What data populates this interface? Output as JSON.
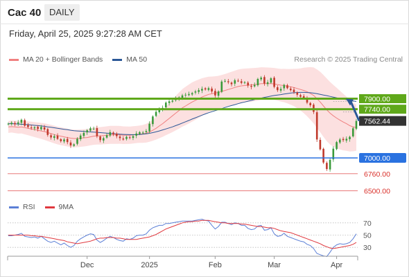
{
  "header": {
    "symbol": "Cac 40",
    "period": "DAILY",
    "datetime": "Friday, April 25, 2025 9:27:28 AM CET"
  },
  "legend_main": [
    {
      "label": "MA 20 + Bollinger Bands",
      "color": "#f08080"
    },
    {
      "label": "MA 50",
      "color": "#2b5797"
    }
  ],
  "copyright": "Research © 2025 Trading Central",
  "legend_rsi": [
    {
      "label": "RSI",
      "color": "#5b7fd6"
    },
    {
      "label": "9MA",
      "color": "#e0383e"
    }
  ],
  "x_axis_labels": [
    "Dec",
    "2025",
    "Feb",
    "Mar",
    "Apr"
  ],
  "colors": {
    "resistance": "#5fa81a",
    "support_pivot": "#2a72e0",
    "support": "#e87878",
    "last": "#333333",
    "candle_up": "#3a9a3a",
    "candle_down": "#c0392b",
    "band_fill": "#fbd5d5",
    "ma20": "#f08080",
    "ma50": "#2b5797",
    "arrow": "#2b5797"
  },
  "chart_data": [
    {
      "type": "candlestick",
      "title": "Cac 40",
      "ylim": [
        6400,
        8400
      ],
      "levels": [
        {
          "value": 7900.0,
          "label": "7900.00",
          "kind": "resistance"
        },
        {
          "value": 7740.0,
          "label": "7740.00",
          "kind": "resistance"
        },
        {
          "value": 7562.44,
          "label": "7562.44",
          "kind": "last"
        },
        {
          "value": 7000.0,
          "label": "7000.00",
          "kind": "pivot"
        },
        {
          "value": 6760.0,
          "label": "6760.00",
          "kind": "support"
        },
        {
          "value": 6500.0,
          "label": "6500.00",
          "kind": "support"
        }
      ],
      "x_tick_labels": [
        "Dec",
        "2025",
        "Feb",
        "Mar",
        "Apr"
      ],
      "x_tick_index": [
        24,
        43,
        63,
        81,
        100
      ],
      "closes": [
        7520,
        7535,
        7510,
        7540,
        7580,
        7490,
        7470,
        7455,
        7465,
        7440,
        7470,
        7430,
        7350,
        7310,
        7330,
        7290,
        7255,
        7280,
        7240,
        7190,
        7205,
        7290,
        7340,
        7380,
        7420,
        7450,
        7445,
        7330,
        7270,
        7300,
        7345,
        7390,
        7360,
        7330,
        7300,
        7280,
        7320,
        7310,
        7330,
        7370,
        7390,
        7385,
        7410,
        7520,
        7630,
        7700,
        7740,
        7760,
        7840,
        7860,
        7870,
        7900,
        7920,
        7950,
        7960,
        7970,
        7985,
        8010,
        8030,
        8050,
        8040,
        8060,
        8010,
        7950,
        8010,
        8160,
        8170,
        8150,
        8120,
        8180,
        8170,
        8140,
        8150,
        8100,
        8080,
        8110,
        8200,
        8220,
        8130,
        8150,
        8210,
        8080,
        8030,
        8050,
        8110,
        8060,
        8030,
        8000,
        7960,
        7930,
        7910,
        7840,
        7800,
        7700,
        7280,
        7130,
        6930,
        6830,
        6970,
        7140,
        7240,
        7280,
        7270,
        7290,
        7320,
        7450,
        7562.44
      ],
      "ma20": [
        7470,
        7475,
        7470,
        7465,
        7470,
        7460,
        7450,
        7440,
        7430,
        7420,
        7410,
        7400,
        7385,
        7370,
        7355,
        7340,
        7330,
        7320,
        7310,
        7300,
        7295,
        7295,
        7300,
        7305,
        7310,
        7320,
        7330,
        7335,
        7335,
        7340,
        7345,
        7350,
        7350,
        7350,
        7350,
        7345,
        7345,
        7345,
        7350,
        7355,
        7360,
        7365,
        7375,
        7395,
        7420,
        7450,
        7485,
        7520,
        7560,
        7600,
        7640,
        7680,
        7720,
        7760,
        7790,
        7820,
        7850,
        7875,
        7900,
        7925,
        7945,
        7965,
        7975,
        7985,
        7995,
        8010,
        8025,
        8040,
        8055,
        8070,
        8085,
        8095,
        8100,
        8105,
        8110,
        8115,
        8120,
        8130,
        8130,
        8130,
        8130,
        8125,
        8115,
        8105,
        8100,
        8090,
        8080,
        8070,
        8055,
        8040,
        8025,
        8005,
        7980,
        7950,
        7900,
        7850,
        7790,
        7730,
        7680,
        7640,
        7605,
        7575,
        7545,
        7520,
        7490,
        7470,
        7460
      ],
      "ma50": [
        7520,
        7520,
        7518,
        7515,
        7512,
        7508,
        7505,
        7500,
        7495,
        7490,
        7485,
        7480,
        7472,
        7465,
        7458,
        7450,
        7442,
        7435,
        7428,
        7420,
        7414,
        7410,
        7406,
        7402,
        7398,
        7395,
        7392,
        7388,
        7384,
        7380,
        7376,
        7372,
        7368,
        7364,
        7360,
        7357,
        7355,
        7354,
        7353,
        7354,
        7356,
        7360,
        7366,
        7374,
        7384,
        7396,
        7410,
        7425,
        7440,
        7456,
        7472,
        7490,
        7510,
        7530,
        7550,
        7570,
        7590,
        7610,
        7630,
        7650,
        7668,
        7686,
        7702,
        7718,
        7734,
        7750,
        7766,
        7782,
        7796,
        7810,
        7824,
        7838,
        7850,
        7862,
        7874,
        7886,
        7898,
        7910,
        7920,
        7930,
        7940,
        7948,
        7955,
        7962,
        7970,
        7978,
        7985,
        7990,
        7994,
        7996,
        7996,
        7994,
        7990,
        7984,
        7976,
        7966,
        7956,
        7946,
        7935,
        7924,
        7914,
        7904,
        7894,
        7884,
        7876,
        7866,
        7858
      ],
      "bb_width": [
        90,
        90,
        92,
        95,
        98,
        102,
        106,
        110,
        114,
        118,
        122,
        126,
        130,
        132,
        134,
        135,
        136,
        136,
        136,
        135,
        134,
        133,
        132,
        131,
        130,
        130,
        131,
        132,
        133,
        134,
        135,
        136,
        136,
        136,
        135,
        134,
        133,
        132,
        131,
        130,
        132,
        136,
        142,
        150,
        160,
        172,
        186,
        200,
        216,
        232,
        248,
        262,
        275,
        285,
        292,
        296,
        298,
        296,
        292,
        286,
        278,
        270,
        262,
        256,
        252,
        250,
        250,
        252,
        254,
        256,
        258,
        258,
        258,
        256,
        254,
        252,
        250,
        248,
        246,
        244,
        242,
        242,
        244,
        248,
        254,
        262,
        272,
        284,
        300,
        320,
        345,
        372,
        400,
        425,
        445,
        460,
        470,
        476,
        476,
        470,
        460,
        446,
        430,
        412,
        392,
        370,
        350
      ]
    },
    {
      "type": "line",
      "title": "RSI",
      "ylim": [
        20,
        80
      ],
      "y_ticks": [
        70,
        50,
        30
      ],
      "series": [
        {
          "name": "RSI",
          "values": [
            49,
            49,
            50,
            51,
            53,
            48,
            47,
            46,
            47,
            45,
            48,
            44,
            40,
            38,
            40,
            37,
            34,
            37,
            33,
            30,
            33,
            40,
            44,
            47,
            50,
            52,
            51,
            42,
            38,
            41,
            45,
            48,
            46,
            43,
            41,
            40,
            44,
            43,
            45,
            49,
            50,
            50,
            52,
            58,
            62,
            64,
            66,
            66,
            69,
            69,
            70,
            71,
            72,
            73,
            73,
            73,
            73,
            74,
            75,
            76,
            74,
            73,
            66,
            60,
            64,
            71,
            71,
            69,
            67,
            70,
            69,
            66,
            66,
            61,
            59,
            60,
            65,
            66,
            58,
            59,
            62,
            52,
            48,
            49,
            53,
            48,
            46,
            44,
            42,
            40,
            39,
            35,
            33,
            28,
            20,
            18,
            16,
            15,
            22,
            30,
            34,
            36,
            35,
            36,
            38,
            44,
            52
          ]
        },
        {
          "name": "9MA",
          "values": [
            50,
            50,
            50,
            50,
            50,
            50,
            50,
            49,
            49,
            48,
            48,
            47,
            46,
            45,
            44,
            43,
            42,
            41,
            39,
            38,
            37,
            36,
            37,
            38,
            39,
            40,
            42,
            44,
            45,
            45,
            46,
            46,
            46,
            45,
            45,
            44,
            43,
            43,
            43,
            43,
            44,
            45,
            46,
            47,
            49,
            51,
            54,
            57,
            60,
            62,
            64,
            66,
            68,
            70,
            71,
            72,
            72,
            73,
            73,
            74,
            74,
            74,
            73,
            72,
            71,
            70,
            70,
            69,
            69,
            69,
            69,
            68,
            68,
            67,
            66,
            65,
            64,
            64,
            63,
            62,
            62,
            61,
            59,
            57,
            56,
            55,
            54,
            52,
            50,
            48,
            46,
            44,
            42,
            40,
            38,
            36,
            33,
            31,
            29,
            28,
            29,
            30,
            31,
            32,
            33,
            35,
            38
          ]
        }
      ]
    }
  ]
}
